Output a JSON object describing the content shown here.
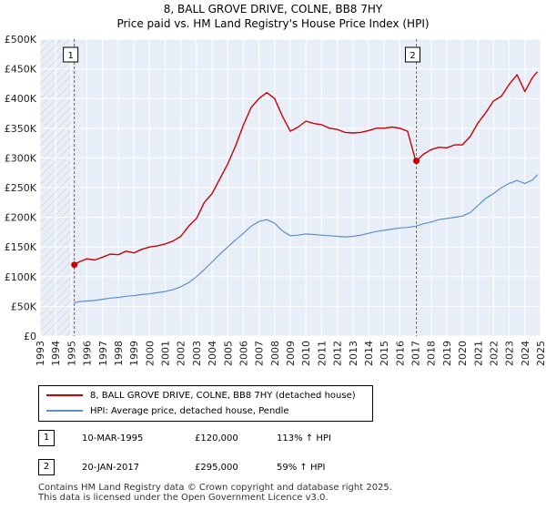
{
  "chart_data": {
    "type": "line",
    "title": "8, BALL GROVE DRIVE, COLNE, BB8 7HY",
    "subtitle": "Price paid vs. HM Land Registry's House Price Index (HPI)",
    "xlim": [
      1993,
      2025
    ],
    "ylim": [
      0,
      500000
    ],
    "x_ticks": [
      "1993",
      "1994",
      "1995",
      "1996",
      "1997",
      "1998",
      "1999",
      "2000",
      "2001",
      "2002",
      "2003",
      "2004",
      "2005",
      "2006",
      "2007",
      "2008",
      "2009",
      "2010",
      "2011",
      "2012",
      "2013",
      "2014",
      "2015",
      "2016",
      "2017",
      "2018",
      "2019",
      "2020",
      "2021",
      "2022",
      "2023",
      "2024",
      "2025"
    ],
    "y_ticks": [
      {
        "value": 0,
        "label": "£0"
      },
      {
        "value": 50000,
        "label": "£50K"
      },
      {
        "value": 100000,
        "label": "£100K"
      },
      {
        "value": 150000,
        "label": "£150K"
      },
      {
        "value": 200000,
        "label": "£200K"
      },
      {
        "value": 250000,
        "label": "£250K"
      },
      {
        "value": 300000,
        "label": "£300K"
      },
      {
        "value": 350000,
        "label": "£350K"
      },
      {
        "value": 400000,
        "label": "£400K"
      },
      {
        "value": 450000,
        "label": "£450K"
      },
      {
        "value": 500000,
        "label": "£500K"
      }
    ],
    "series": [
      {
        "name": "8, BALL GROVE DRIVE, COLNE, BB8 7HY (detached house)",
        "color": "#cc0000",
        "x": [
          1995.19,
          1995.5,
          1996.0,
          1996.5,
          1997.0,
          1997.5,
          1998.0,
          1998.5,
          1999.0,
          1999.5,
          2000.0,
          2000.5,
          2001.0,
          2001.5,
          2002.0,
          2002.5,
          2003.0,
          2003.5,
          2004.0,
          2004.5,
          2005.0,
          2005.5,
          2006.0,
          2006.5,
          2007.0,
          2007.5,
          2008.0,
          2008.5,
          2009.0,
          2009.5,
          2010.0,
          2010.5,
          2011.0,
          2011.5,
          2012.0,
          2012.5,
          2013.0,
          2013.5,
          2014.0,
          2014.5,
          2015.0,
          2015.5,
          2016.0,
          2016.5,
          2017.0,
          2017.06,
          2017.5,
          2018.0,
          2018.5,
          2019.0,
          2019.5,
          2020.0,
          2020.5,
          2021.0,
          2021.5,
          2022.0,
          2022.5,
          2023.0,
          2023.5,
          2024.0,
          2024.5,
          2024.8
        ],
        "values": [
          120000,
          125000,
          130000,
          128000,
          133000,
          138000,
          137000,
          143000,
          140000,
          146000,
          150000,
          152000,
          155000,
          160000,
          168000,
          185000,
          198000,
          225000,
          240000,
          265000,
          290000,
          320000,
          355000,
          385000,
          400000,
          410000,
          400000,
          370000,
          345000,
          352000,
          362000,
          358000,
          356000,
          350000,
          348000,
          343000,
          342000,
          343000,
          346000,
          350000,
          350000,
          352000,
          350000,
          345000,
          297000,
          295000,
          306000,
          314000,
          318000,
          317000,
          322000,
          322000,
          336000,
          359000,
          376000,
          396000,
          404000,
          424000,
          440000,
          412000,
          436000,
          445000
        ]
      },
      {
        "name": "HPI: Average price, detached house, Pendle",
        "color": "#5b8fd0",
        "x": [
          1995.19,
          1995.5,
          1996.0,
          1996.5,
          1997.0,
          1997.5,
          1998.0,
          1998.5,
          1999.0,
          1999.5,
          2000.0,
          2000.5,
          2001.0,
          2001.5,
          2002.0,
          2002.5,
          2003.0,
          2003.5,
          2004.0,
          2004.5,
          2005.0,
          2005.5,
          2006.0,
          2006.5,
          2007.0,
          2007.5,
          2008.0,
          2008.5,
          2009.0,
          2009.5,
          2010.0,
          2010.5,
          2011.0,
          2011.5,
          2012.0,
          2012.5,
          2013.0,
          2013.5,
          2014.0,
          2014.5,
          2015.0,
          2015.5,
          2016.0,
          2016.5,
          2017.0,
          2017.5,
          2018.0,
          2018.5,
          2019.0,
          2019.5,
          2020.0,
          2020.5,
          2021.0,
          2021.5,
          2022.0,
          2022.5,
          2023.0,
          2023.5,
          2024.0,
          2024.5,
          2024.8
        ],
        "values": [
          56000,
          58000,
          59000,
          60000,
          62000,
          64000,
          65000,
          67000,
          68000,
          70000,
          71000,
          73000,
          75000,
          78000,
          83000,
          90000,
          100000,
          112000,
          125000,
          138000,
          150000,
          162000,
          173000,
          185000,
          193000,
          196000,
          190000,
          177000,
          169000,
          170000,
          172000,
          171000,
          170000,
          169000,
          168000,
          167000,
          168000,
          170000,
          173000,
          176000,
          178000,
          180000,
          182000,
          183000,
          185000,
          189000,
          192000,
          196000,
          198000,
          200000,
          202000,
          208000,
          220000,
          232000,
          240000,
          250000,
          257000,
          262000,
          257000,
          263000,
          272000
        ]
      }
    ],
    "transactions": [
      {
        "id": "1",
        "x": 1995.19,
        "value": 120000
      },
      {
        "id": "2",
        "x": 2017.06,
        "value": 295000
      }
    ],
    "hatched_before": 1995.0
  },
  "legend": {
    "red_label": "8, BALL GROVE DRIVE, COLNE, BB8 7HY (detached house)",
    "blue_label": "HPI: Average price, detached house, Pendle"
  },
  "transactions_table": [
    {
      "num": "1",
      "date": "10-MAR-1995",
      "price": "£120,000",
      "hpi": "113% ↑ HPI"
    },
    {
      "num": "2",
      "date": "20-JAN-2017",
      "price": "£295,000",
      "hpi": "59% ↑ HPI"
    }
  ],
  "footer": {
    "line1": "Contains HM Land Registry data © Crown copyright and database right 2025.",
    "line2": "This data is licensed under the Open Government Licence v3.0."
  }
}
